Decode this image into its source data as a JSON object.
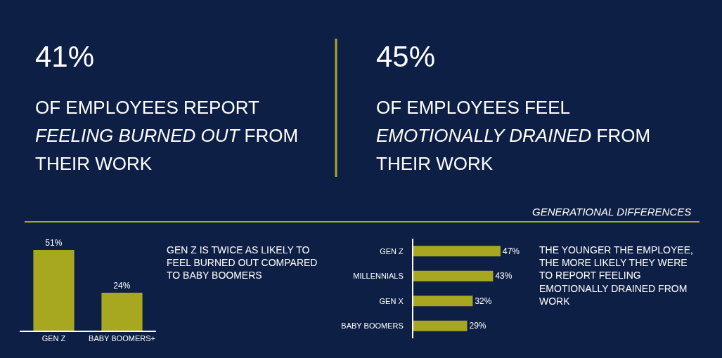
{
  "chart_data": [
    {
      "type": "other",
      "title": "41%",
      "annotations": [
        "OF EMPLOYEES REPORT",
        "FEELING BURNED OUT",
        "FROM",
        "THEIR WORK"
      ]
    },
    {
      "type": "other",
      "title": "45%",
      "annotations": [
        "OF EMPLOYEES FEEL",
        "EMOTIONALLY DRAINED",
        "FROM",
        "THEIR WORK"
      ]
    },
    {
      "type": "other",
      "title": "GENERATIONAL DIFFERENCES"
    },
    {
      "type": "bar",
      "categories": [
        "GEN Z",
        "BABY BOOMERS+"
      ],
      "values": [
        51,
        24
      ],
      "value_labels": [
        "51%",
        "24%"
      ],
      "color": "#a8a820",
      "annotations": [
        "GEN Z IS TWICE AS LIKELY TO\nFEEL BURNED OUT COMPARED\nTO BABY BOOMERS"
      ]
    },
    {
      "type": "bar",
      "orientation": "horizontal",
      "categories": [
        "GEN Z",
        "MILLENNIALS",
        "GEN X",
        "BABY BOOMERS"
      ],
      "values": [
        47,
        43,
        32,
        29
      ],
      "value_labels": [
        "47%",
        "43%",
        "32%",
        "29%"
      ],
      "color": "#a8a820",
      "annotations": [
        "THE YOUNGER THE EMPLOYEE,\nTHE MORE LIKELY THEY WERE\nTO REPORT FEELING\nEMOTIONALLY DRAINED FROM\nWORK"
      ]
    }
  ]
}
